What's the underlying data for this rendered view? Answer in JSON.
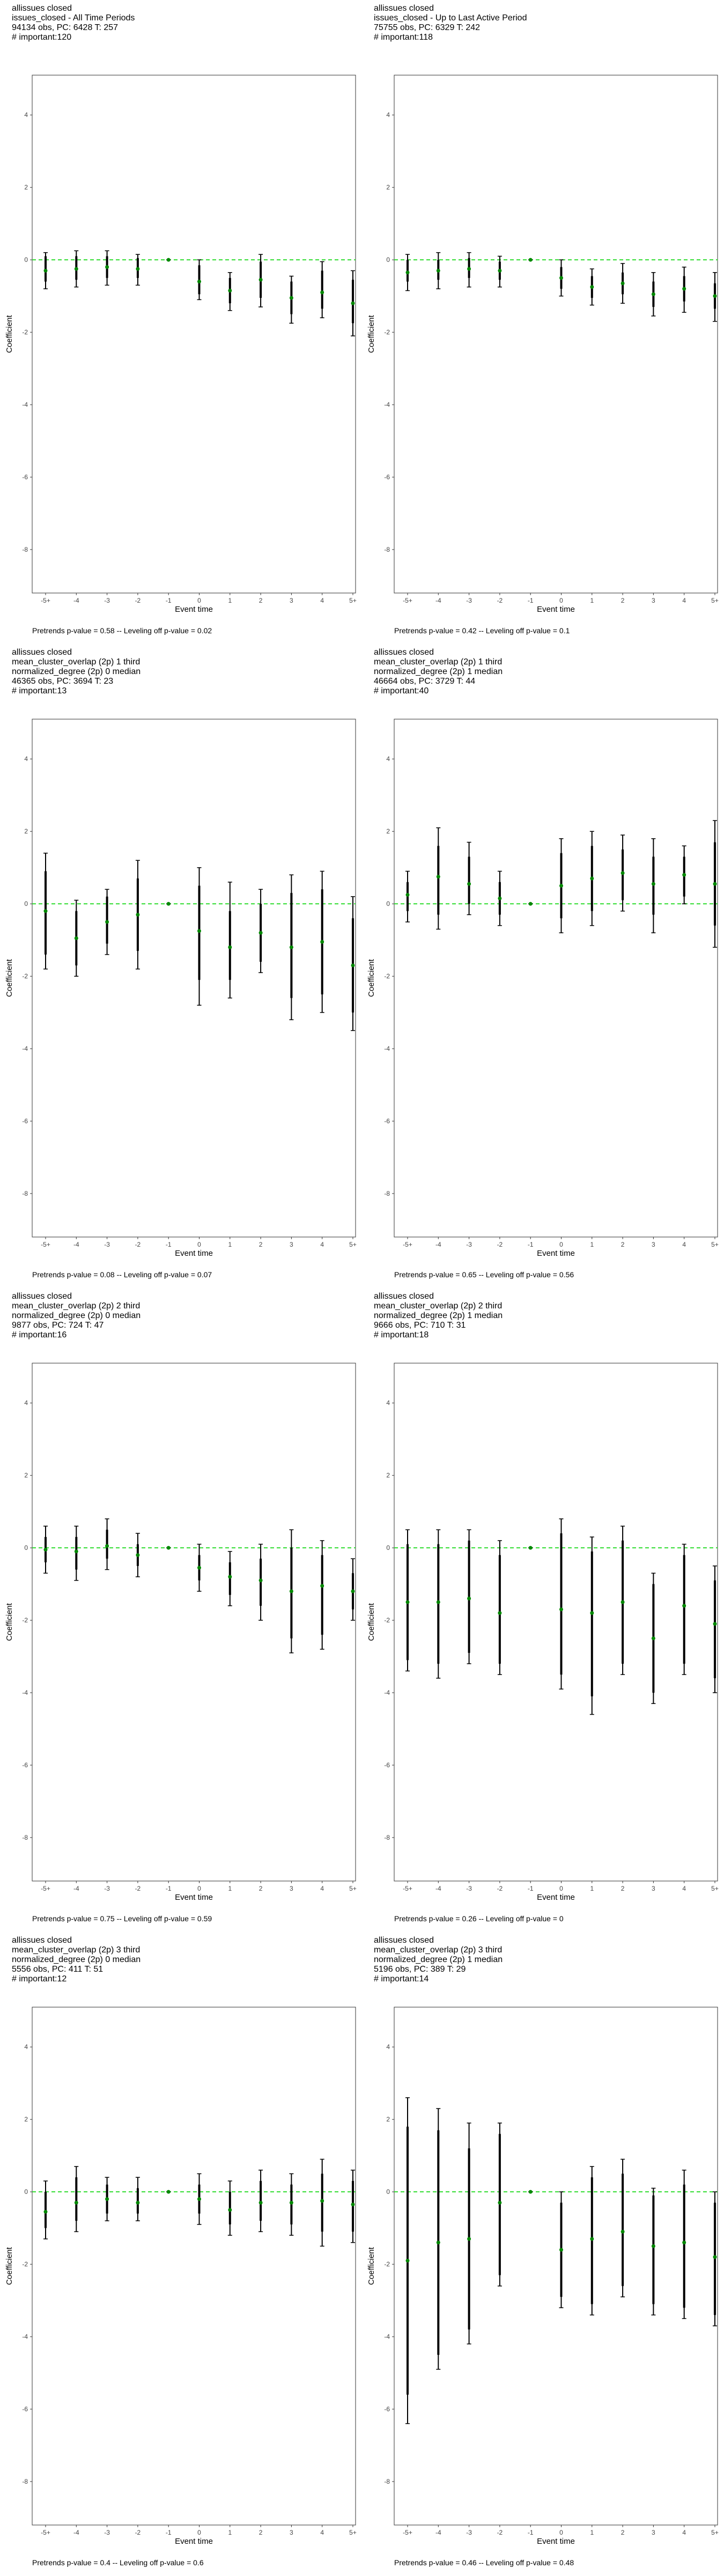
{
  "chart_data": [
    {
      "type": "scatter",
      "title_lines": [
        "allissues closed",
        "issues_closed - All Time Periods",
        "94134 obs, PC: 6428 T: 257",
        "# important:120"
      ],
      "xlabel": "Event time",
      "ylabel": "Coefficient",
      "categories": [
        "-5+",
        "-4",
        "-3",
        "-2",
        "-1",
        "0",
        "1",
        "2",
        "3",
        "4",
        "5+"
      ],
      "y_ticks": [
        -8,
        -6,
        -4,
        -2,
        0,
        2,
        4
      ],
      "ylim": [
        -9.2,
        5.1
      ],
      "grid": false,
      "reference_line": 0,
      "reference_color": "#33dd33",
      "point_color": "#008800",
      "estimates": [
        -0.3,
        -0.25,
        -0.2,
        -0.25,
        0.0,
        -0.6,
        -0.85,
        -0.55,
        -1.05,
        -0.9,
        -1.2
      ],
      "ci_outer": [
        [
          -0.8,
          0.2
        ],
        [
          -0.75,
          0.25
        ],
        [
          -0.7,
          0.25
        ],
        [
          -0.7,
          0.15
        ],
        [
          0.0,
          0.0
        ],
        [
          -1.1,
          0.0
        ],
        [
          -1.4,
          -0.35
        ],
        [
          -1.3,
          0.15
        ],
        [
          -1.75,
          -0.45
        ],
        [
          -1.6,
          -0.05
        ],
        [
          -2.1,
          -0.3
        ]
      ],
      "ci_inner": [
        [
          -0.6,
          0.1
        ],
        [
          -0.55,
          0.1
        ],
        [
          -0.5,
          0.1
        ],
        [
          -0.5,
          0.05
        ],
        [
          0.0,
          0.0
        ],
        [
          -0.95,
          -0.15
        ],
        [
          -1.2,
          -0.5
        ],
        [
          -1.05,
          -0.05
        ],
        [
          -1.5,
          -0.6
        ],
        [
          -1.35,
          -0.3
        ],
        [
          -1.75,
          -0.55
        ]
      ],
      "footer": "Pretrends p-value = 0.58 -- Leveling off p-value = 0.02"
    },
    {
      "type": "scatter",
      "title_lines": [
        "allissues closed",
        "issues_closed - Up to Last Active Period",
        "75755 obs, PC: 6329 T: 242",
        "# important:118"
      ],
      "xlabel": "Event time",
      "ylabel": "Coefficient",
      "categories": [
        "-5+",
        "-4",
        "-3",
        "-2",
        "-1",
        "0",
        "1",
        "2",
        "3",
        "4",
        "5+"
      ],
      "y_ticks": [
        -8,
        -6,
        -4,
        -2,
        0,
        2,
        4
      ],
      "ylim": [
        -9.2,
        5.1
      ],
      "grid": false,
      "reference_line": 0,
      "reference_color": "#33dd33",
      "point_color": "#008800",
      "estimates": [
        -0.35,
        -0.3,
        -0.25,
        -0.3,
        0.0,
        -0.5,
        -0.75,
        -0.65,
        -0.95,
        -0.8,
        -1.0
      ],
      "ci_outer": [
        [
          -0.85,
          0.15
        ],
        [
          -0.8,
          0.2
        ],
        [
          -0.75,
          0.2
        ],
        [
          -0.75,
          0.1
        ],
        [
          0.0,
          0.0
        ],
        [
          -1.0,
          0.0
        ],
        [
          -1.25,
          -0.25
        ],
        [
          -1.2,
          -0.1
        ],
        [
          -1.55,
          -0.35
        ],
        [
          -1.45,
          -0.2
        ],
        [
          -1.7,
          -0.35
        ]
      ],
      "ci_inner": [
        [
          -0.6,
          0.0
        ],
        [
          -0.55,
          0.0
        ],
        [
          -0.5,
          0.05
        ],
        [
          -0.55,
          -0.05
        ],
        [
          0.0,
          0.0
        ],
        [
          -0.8,
          -0.2
        ],
        [
          -1.05,
          -0.45
        ],
        [
          -0.95,
          -0.35
        ],
        [
          -1.3,
          -0.6
        ],
        [
          -1.15,
          -0.45
        ],
        [
          -1.35,
          -0.65
        ]
      ],
      "footer": "Pretrends p-value = 0.42 -- Leveling off p-value = 0.1"
    },
    {
      "type": "scatter",
      "title_lines": [
        "allissues closed",
        "mean_cluster_overlap (2p) 1 third",
        "normalized_degree (2p) 0 median",
        "46365 obs, PC: 3694 T: 23",
        "# important:13"
      ],
      "xlabel": "Event time",
      "ylabel": "Coefficient",
      "categories": [
        "-5+",
        "-4",
        "-3",
        "-2",
        "-1",
        "0",
        "1",
        "2",
        "3",
        "4",
        "5+"
      ],
      "y_ticks": [
        -8,
        -6,
        -4,
        -2,
        0,
        2,
        4
      ],
      "ylim": [
        -9.2,
        5.1
      ],
      "grid": false,
      "reference_line": 0,
      "reference_color": "#33dd33",
      "point_color": "#008800",
      "estimates": [
        -0.2,
        -0.95,
        -0.5,
        -0.3,
        0.0,
        -0.75,
        -1.2,
        -0.8,
        -1.2,
        -1.05,
        -1.7
      ],
      "ci_outer": [
        [
          -1.8,
          1.4
        ],
        [
          -2.0,
          0.1
        ],
        [
          -1.4,
          0.4
        ],
        [
          -1.8,
          1.2
        ],
        [
          0.0,
          0.0
        ],
        [
          -2.8,
          1.0
        ],
        [
          -2.6,
          0.6
        ],
        [
          -1.9,
          0.4
        ],
        [
          -3.2,
          0.8
        ],
        [
          -3.0,
          0.9
        ],
        [
          -3.5,
          0.2
        ]
      ],
      "ci_inner": [
        [
          -1.4,
          0.9
        ],
        [
          -1.7,
          -0.2
        ],
        [
          -1.1,
          0.2
        ],
        [
          -1.3,
          0.7
        ],
        [
          0.0,
          0.0
        ],
        [
          -2.1,
          0.5
        ],
        [
          -2.1,
          -0.2
        ],
        [
          -1.6,
          0.0
        ],
        [
          -2.6,
          0.3
        ],
        [
          -2.5,
          0.4
        ],
        [
          -3.0,
          -0.4
        ]
      ],
      "footer": "Pretrends p-value = 0.08 -- Leveling off p-value = 0.07"
    },
    {
      "type": "scatter",
      "title_lines": [
        "allissues closed",
        "mean_cluster_overlap (2p) 1 third",
        "normalized_degree (2p) 1 median",
        "46664 obs, PC: 3729 T: 44",
        "# important:40"
      ],
      "xlabel": "Event time",
      "ylabel": "Coefficient",
      "categories": [
        "-5+",
        "-4",
        "-3",
        "-2",
        "-1",
        "0",
        "1",
        "2",
        "3",
        "4",
        "5+"
      ],
      "y_ticks": [
        -8,
        -6,
        -4,
        -2,
        0,
        2,
        4
      ],
      "ylim": [
        -9.2,
        5.1
      ],
      "grid": false,
      "reference_line": 0,
      "reference_color": "#33dd33",
      "point_color": "#008800",
      "estimates": [
        0.25,
        0.75,
        0.55,
        0.15,
        0.0,
        0.5,
        0.7,
        0.85,
        0.55,
        0.8,
        0.55
      ],
      "ci_outer": [
        [
          -0.5,
          0.9
        ],
        [
          -0.7,
          2.1
        ],
        [
          -0.3,
          1.7
        ],
        [
          -0.6,
          0.9
        ],
        [
          0.0,
          0.0
        ],
        [
          -0.8,
          1.8
        ],
        [
          -0.6,
          2.0
        ],
        [
          -0.2,
          1.9
        ],
        [
          -0.8,
          1.8
        ],
        [
          0.0,
          1.6
        ],
        [
          -1.2,
          2.3
        ]
      ],
      "ci_inner": [
        [
          -0.2,
          0.6
        ],
        [
          -0.3,
          1.6
        ],
        [
          0.0,
          1.3
        ],
        [
          -0.3,
          0.6
        ],
        [
          0.0,
          0.0
        ],
        [
          -0.4,
          1.4
        ],
        [
          -0.2,
          1.6
        ],
        [
          0.1,
          1.5
        ],
        [
          -0.3,
          1.3
        ],
        [
          0.2,
          1.3
        ],
        [
          -0.6,
          1.7
        ]
      ],
      "footer": "Pretrends p-value = 0.65 -- Leveling off p-value = 0.56"
    },
    {
      "type": "scatter",
      "title_lines": [
        "allissues closed",
        "mean_cluster_overlap (2p) 2 third",
        "normalized_degree (2p) 0 median",
        "9877 obs, PC: 724 T: 47",
        "# important:16"
      ],
      "xlabel": "Event time",
      "ylabel": "Coefficient",
      "categories": [
        "-5+",
        "-4",
        "-3",
        "-2",
        "-1",
        "0",
        "1",
        "2",
        "3",
        "4",
        "5+"
      ],
      "y_ticks": [
        -8,
        -6,
        -4,
        -2,
        0,
        2,
        4
      ],
      "ylim": [
        -9.2,
        5.1
      ],
      "grid": false,
      "reference_line": 0,
      "reference_color": "#33dd33",
      "point_color": "#008800",
      "estimates": [
        -0.05,
        -0.1,
        0.05,
        -0.2,
        0.0,
        -0.55,
        -0.8,
        -0.9,
        -1.2,
        -1.05,
        -1.2
      ],
      "ci_outer": [
        [
          -0.7,
          0.6
        ],
        [
          -0.9,
          0.6
        ],
        [
          -0.6,
          0.8
        ],
        [
          -0.8,
          0.4
        ],
        [
          0.0,
          0.0
        ],
        [
          -1.2,
          0.1
        ],
        [
          -1.6,
          -0.1
        ],
        [
          -2.0,
          0.1
        ],
        [
          -2.9,
          0.5
        ],
        [
          -2.8,
          0.2
        ],
        [
          -2.0,
          -0.3
        ]
      ],
      "ci_inner": [
        [
          -0.4,
          0.3
        ],
        [
          -0.6,
          0.3
        ],
        [
          -0.3,
          0.5
        ],
        [
          -0.5,
          0.1
        ],
        [
          0.0,
          0.0
        ],
        [
          -0.9,
          -0.2
        ],
        [
          -1.3,
          -0.4
        ],
        [
          -1.6,
          -0.3
        ],
        [
          -2.5,
          0.0
        ],
        [
          -2.4,
          -0.2
        ],
        [
          -1.7,
          -0.7
        ]
      ],
      "footer": "Pretrends p-value = 0.75 -- Leveling off p-value = 0.59"
    },
    {
      "type": "scatter",
      "title_lines": [
        "allissues closed",
        "mean_cluster_overlap (2p) 2 third",
        "normalized_degree (2p) 1 median",
        "9666 obs, PC: 710 T: 31",
        "# important:18"
      ],
      "xlabel": "Event time",
      "ylabel": "Coefficient",
      "categories": [
        "-5+",
        "-4",
        "-3",
        "-2",
        "-1",
        "0",
        "1",
        "2",
        "3",
        "4",
        "5+"
      ],
      "y_ticks": [
        -8,
        -6,
        -4,
        -2,
        0,
        2,
        4
      ],
      "ylim": [
        -9.2,
        5.1
      ],
      "grid": false,
      "reference_line": 0,
      "reference_color": "#33dd33",
      "point_color": "#008800",
      "estimates": [
        -1.5,
        -1.5,
        -1.4,
        -1.8,
        0.0,
        -1.7,
        -1.8,
        -1.5,
        -2.5,
        -1.6,
        -2.1
      ],
      "ci_outer": [
        [
          -3.4,
          0.5
        ],
        [
          -3.6,
          0.5
        ],
        [
          -3.2,
          0.5
        ],
        [
          -3.5,
          0.2
        ],
        [
          0.0,
          0.0
        ],
        [
          -3.9,
          0.8
        ],
        [
          -4.6,
          0.3
        ],
        [
          -3.5,
          0.6
        ],
        [
          -4.3,
          -0.7
        ],
        [
          -3.5,
          0.1
        ],
        [
          -4.0,
          -0.5
        ]
      ],
      "ci_inner": [
        [
          -3.1,
          0.1
        ],
        [
          -3.2,
          0.1
        ],
        [
          -2.9,
          0.2
        ],
        [
          -3.2,
          -0.2
        ],
        [
          0.0,
          0.0
        ],
        [
          -3.5,
          0.4
        ],
        [
          -4.1,
          -0.1
        ],
        [
          -3.2,
          0.2
        ],
        [
          -4.0,
          -1.0
        ],
        [
          -3.2,
          -0.2
        ],
        [
          -3.6,
          -0.9
        ]
      ],
      "footer": "Pretrends p-value = 0.26 -- Leveling off p-value = 0"
    },
    {
      "type": "scatter",
      "title_lines": [
        "allissues closed",
        "mean_cluster_overlap (2p) 3 third",
        "normalized_degree (2p) 0 median",
        "5556 obs, PC: 411 T: 51",
        "# important:12"
      ],
      "xlabel": "Event time",
      "ylabel": "Coefficient",
      "categories": [
        "-5+",
        "-4",
        "-3",
        "-2",
        "-1",
        "0",
        "1",
        "2",
        "3",
        "4",
        "5+"
      ],
      "y_ticks": [
        -8,
        -6,
        -4,
        -2,
        0,
        2,
        4
      ],
      "ylim": [
        -9.2,
        5.1
      ],
      "grid": false,
      "reference_line": 0,
      "reference_color": "#33dd33",
      "point_color": "#008800",
      "estimates": [
        -0.55,
        -0.3,
        -0.2,
        -0.3,
        0.0,
        -0.2,
        -0.5,
        -0.3,
        -0.3,
        -0.25,
        -0.35
      ],
      "ci_outer": [
        [
          -1.3,
          0.3
        ],
        [
          -1.1,
          0.7
        ],
        [
          -0.8,
          0.4
        ],
        [
          -0.8,
          0.4
        ],
        [
          0.0,
          0.0
        ],
        [
          -0.9,
          0.5
        ],
        [
          -1.2,
          0.3
        ],
        [
          -1.1,
          0.6
        ],
        [
          -1.2,
          0.5
        ],
        [
          -1.5,
          0.9
        ],
        [
          -1.4,
          0.6
        ]
      ],
      "ci_inner": [
        [
          -1.0,
          0.0
        ],
        [
          -0.8,
          0.4
        ],
        [
          -0.6,
          0.2
        ],
        [
          -0.6,
          0.1
        ],
        [
          0.0,
          0.0
        ],
        [
          -0.6,
          0.2
        ],
        [
          -0.9,
          0.0
        ],
        [
          -0.8,
          0.3
        ],
        [
          -0.9,
          0.2
        ],
        [
          -1.1,
          0.5
        ],
        [
          -1.1,
          0.3
        ]
      ],
      "footer": "Pretrends p-value = 0.4 -- Leveling off p-value = 0.6"
    },
    {
      "type": "scatter",
      "title_lines": [
        "allissues closed",
        "mean_cluster_overlap (2p) 3 third",
        "normalized_degree (2p) 1 median",
        "5196 obs, PC: 389 T: 29",
        "# important:14"
      ],
      "xlabel": "Event time",
      "ylabel": "Coefficient",
      "categories": [
        "-5+",
        "-4",
        "-3",
        "-2",
        "-1",
        "0",
        "1",
        "2",
        "3",
        "4",
        "5+"
      ],
      "y_ticks": [
        -8,
        -6,
        -4,
        -2,
        0,
        2,
        4
      ],
      "ylim": [
        -9.2,
        5.1
      ],
      "grid": false,
      "reference_line": 0,
      "reference_color": "#33dd33",
      "point_color": "#008800",
      "estimates": [
        -1.9,
        -1.4,
        -1.3,
        -0.3,
        0.0,
        -1.6,
        -1.3,
        -1.1,
        -1.5,
        -1.4,
        -1.8
      ],
      "ci_outer": [
        [
          -6.4,
          2.6
        ],
        [
          -4.9,
          2.3
        ],
        [
          -4.2,
          1.9
        ],
        [
          -2.6,
          1.9
        ],
        [
          0.0,
          0.0
        ],
        [
          -3.2,
          0.0
        ],
        [
          -3.4,
          0.7
        ],
        [
          -2.9,
          0.9
        ],
        [
          -3.4,
          0.1
        ],
        [
          -3.5,
          0.6
        ],
        [
          -3.7,
          0.0
        ]
      ],
      "ci_inner": [
        [
          -5.6,
          1.8
        ],
        [
          -4.5,
          1.7
        ],
        [
          -3.8,
          1.2
        ],
        [
          -2.3,
          1.6
        ],
        [
          0.0,
          0.0
        ],
        [
          -2.9,
          -0.3
        ],
        [
          -3.1,
          0.4
        ],
        [
          -2.6,
          0.5
        ],
        [
          -3.1,
          -0.1
        ],
        [
          -3.2,
          0.2
        ],
        [
          -3.4,
          -0.3
        ]
      ],
      "footer": "Pretrends p-value = 0.46 -- Leveling off p-value = 0.48"
    }
  ]
}
